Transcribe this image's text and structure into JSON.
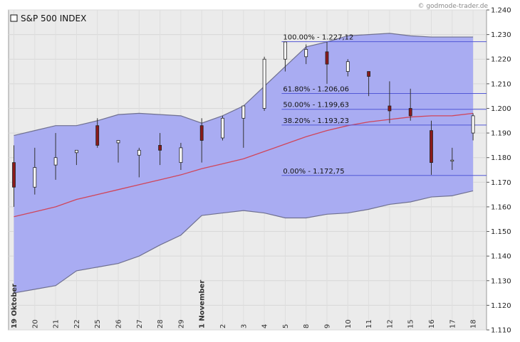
{
  "chart_data": {
    "type": "candlestick",
    "title": "S&P 500 INDEX",
    "credit": "© godmode-trader.de",
    "ylim": [
      1110,
      1240
    ],
    "y_ticks": [
      "1.110",
      "1.120",
      "1.130",
      "1.140",
      "1.150",
      "1.160",
      "1.170",
      "1.180",
      "1.190",
      "1.200",
      "1.210",
      "1.220",
      "1.230",
      "1.240"
    ],
    "y_tick_values": [
      1110,
      1120,
      1130,
      1140,
      1150,
      1160,
      1170,
      1180,
      1190,
      1200,
      1210,
      1220,
      1230,
      1240
    ],
    "grid": true,
    "x_labels": [
      "19 Oktober",
      "20",
      "21",
      "22",
      "25",
      "26",
      "27",
      "28",
      "29",
      "1 November",
      "2",
      "3",
      "4",
      "5",
      "8",
      "9",
      "10",
      "11",
      "12",
      "15",
      "16",
      "17",
      "18"
    ],
    "candles": [
      {
        "o": 1178,
        "h": 1185,
        "l": 1160,
        "c": 1168
      },
      {
        "o": 1168,
        "h": 1184,
        "l": 1165,
        "c": 1176
      },
      {
        "o": 1177,
        "h": 1190,
        "l": 1171,
        "c": 1180
      },
      {
        "o": 1182,
        "h": 1183,
        "l": 1177,
        "c": 1183
      },
      {
        "o": 1193,
        "h": 1196,
        "l": 1184,
        "c": 1185
      },
      {
        "o": 1186,
        "h": 1187,
        "l": 1178,
        "c": 1187
      },
      {
        "o": 1181,
        "h": 1184,
        "l": 1172,
        "c": 1183
      },
      {
        "o": 1185,
        "h": 1190,
        "l": 1177,
        "c": 1183
      },
      {
        "o": 1178,
        "h": 1186,
        "l": 1175,
        "c": 1184
      },
      {
        "o": 1193,
        "h": 1196,
        "l": 1178,
        "c": 1187
      },
      {
        "o": 1188,
        "h": 1197,
        "l": 1187,
        "c": 1196
      },
      {
        "o": 1196,
        "h": 1201,
        "l": 1184,
        "c": 1201
      },
      {
        "o": 1200,
        "h": 1221,
        "l": 1199,
        "c": 1220
      },
      {
        "o": 1220,
        "h": 1227,
        "l": 1215,
        "c": 1227
      },
      {
        "o": 1221,
        "h": 1226,
        "l": 1218,
        "c": 1224
      },
      {
        "o": 1223,
        "h": 1227,
        "l": 1210,
        "c": 1218
      },
      {
        "o": 1215,
        "h": 1220,
        "l": 1213,
        "c": 1219
      },
      {
        "o": 1215,
        "h": 1215,
        "l": 1205,
        "c": 1213
      },
      {
        "o": 1201,
        "h": 1211,
        "l": 1194,
        "c": 1199
      },
      {
        "o": 1200,
        "h": 1208,
        "l": 1195,
        "c": 1197
      },
      {
        "o": 1191,
        "h": 1195,
        "l": 1173,
        "c": 1178
      },
      {
        "o": 1179,
        "h": 1184,
        "l": 1175,
        "c": 1179
      },
      {
        "o": 1190,
        "h": 1198,
        "l": 1187,
        "c": 1197
      }
    ],
    "bollinger_upper": [
      1189,
      1191,
      1193,
      1193,
      1195,
      1197.5,
      1198,
      1197.5,
      1197,
      1194,
      1197,
      1201,
      1209,
      1217,
      1225,
      1227,
      1229.5,
      1230,
      1230.5,
      1229.5,
      1229,
      1229,
      1229
    ],
    "bollinger_lower": [
      1125,
      1126.5,
      1128,
      1134,
      1135.5,
      1137,
      1140,
      1144.5,
      1148.5,
      1156.5,
      1157.5,
      1158.5,
      1157.5,
      1155.5,
      1155.5,
      1157,
      1157.5,
      1159,
      1161,
      1162,
      1164,
      1164.5,
      1166.5
    ],
    "moving_average": [
      1156,
      1158,
      1160,
      1163,
      1165,
      1167,
      1169,
      1171,
      1173,
      1175.5,
      1177.5,
      1179.5,
      1182.5,
      1185.5,
      1188.5,
      1191,
      1193,
      1194.5,
      1195.5,
      1196.5,
      1197,
      1197,
      1198
    ],
    "fibonacci": {
      "start_index": 13,
      "levels": [
        {
          "label": "100.00% - 1.227,12",
          "value": 1227.12
        },
        {
          "label": "61.80% - 1.206,06",
          "value": 1206.06
        },
        {
          "label": "50.00% - 1.199,63",
          "value": 1199.63
        },
        {
          "label": "38.20% - 1.193,23",
          "value": 1193.23
        },
        {
          "label": "0.00% - 1.172,75",
          "value": 1172.75
        }
      ]
    },
    "colors": {
      "plot_bg": "#ebebeb",
      "band_fill": "#a9acf2",
      "band_edge": "#6f7090",
      "ma_line": "#d0455a",
      "fib_line": "#5258d6",
      "bull_body": "#ffffff",
      "bear_body": "#8b1a1a",
      "wick": "#333333"
    }
  }
}
